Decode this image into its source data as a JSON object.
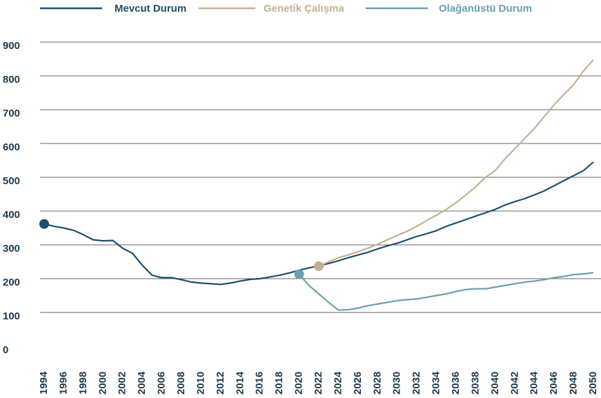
{
  "chart_data": {
    "type": "line",
    "x": [
      1994,
      1995,
      1996,
      1997,
      1998,
      1999,
      2000,
      2001,
      2002,
      2003,
      2004,
      2005,
      2006,
      2007,
      2008,
      2009,
      2010,
      2011,
      2012,
      2013,
      2014,
      2015,
      2016,
      2017,
      2018,
      2019,
      2020,
      2021,
      2022,
      2023,
      2024,
      2025,
      2026,
      2027,
      2028,
      2029,
      2030,
      2031,
      2032,
      2033,
      2034,
      2035,
      2036,
      2037,
      2038,
      2039,
      2040,
      2041,
      2042,
      2043,
      2044,
      2045,
      2046,
      2047,
      2048,
      2049,
      2050
    ],
    "series": [
      {
        "name": "Mevcut Durum",
        "color": "#1d4e6a",
        "values": [
          362,
          355,
          350,
          343,
          330,
          315,
          312,
          313,
          290,
          275,
          240,
          210,
          203,
          203,
          197,
          190,
          187,
          185,
          183,
          187,
          193,
          198,
          200,
          205,
          210,
          217,
          225,
          232,
          238,
          245,
          253,
          262,
          270,
          278,
          288,
          297,
          305,
          315,
          325,
          333,
          342,
          355,
          365,
          375,
          385,
          395,
          405,
          418,
          428,
          437,
          448,
          460,
          475,
          490,
          505,
          520,
          545
        ]
      },
      {
        "name": "Genetik Çalışma",
        "color": "#c2b193",
        "values": [
          null,
          null,
          null,
          null,
          null,
          null,
          null,
          null,
          null,
          null,
          null,
          null,
          null,
          null,
          null,
          null,
          null,
          null,
          null,
          null,
          null,
          null,
          null,
          null,
          null,
          null,
          null,
          null,
          237,
          250,
          262,
          270,
          280,
          290,
          302,
          315,
          328,
          340,
          355,
          372,
          388,
          405,
          425,
          448,
          472,
          500,
          520,
          555,
          585,
          615,
          645,
          680,
          715,
          745,
          775,
          815,
          848
        ]
      },
      {
        "name": "Olağanüstü Durum",
        "color": "#6a9fad",
        "values": [
          null,
          null,
          null,
          null,
          null,
          null,
          null,
          null,
          null,
          null,
          null,
          null,
          null,
          null,
          null,
          null,
          null,
          null,
          null,
          null,
          null,
          null,
          null,
          null,
          null,
          null,
          213,
          180,
          155,
          130,
          107,
          108,
          113,
          120,
          125,
          130,
          135,
          138,
          140,
          145,
          150,
          155,
          162,
          168,
          170,
          170,
          175,
          180,
          185,
          190,
          193,
          197,
          203,
          207,
          212,
          214,
          218
        ]
      }
    ],
    "xlim": [
      1994,
      2050
    ],
    "xticks": [
      1994,
      1996,
      1998,
      2000,
      2002,
      2004,
      2006,
      2008,
      2010,
      2012,
      2014,
      2016,
      2018,
      2020,
      2022,
      2024,
      2026,
      2028,
      2030,
      2032,
      2034,
      2036,
      2038,
      2040,
      2042,
      2044,
      2046,
      2048,
      2050
    ],
    "ylim": [
      0,
      900
    ],
    "yticks": [
      0,
      100,
      200,
      300,
      400,
      500,
      600,
      700,
      800,
      900
    ],
    "grid": true
  }
}
